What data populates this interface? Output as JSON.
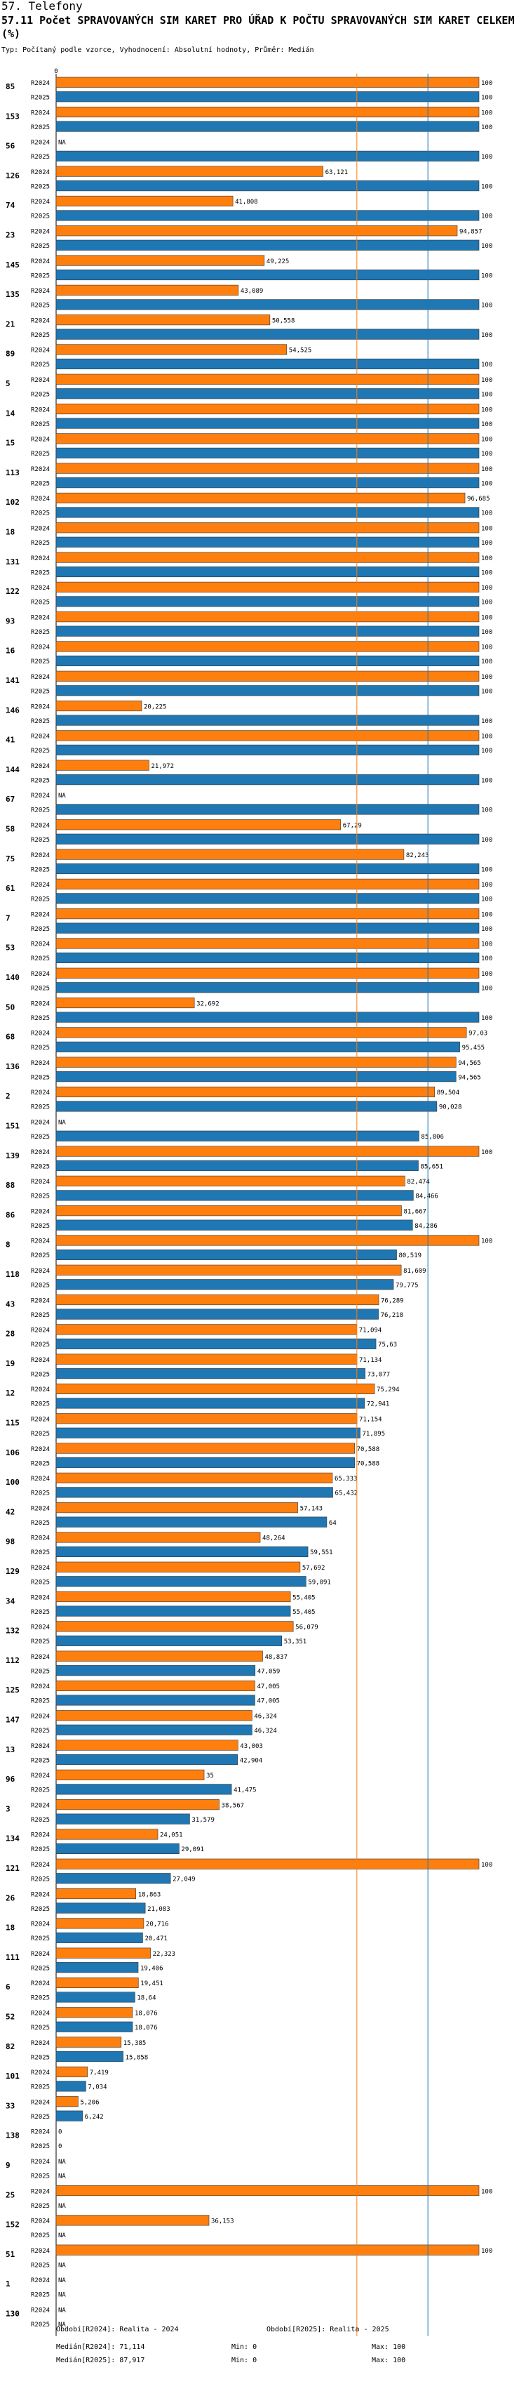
{
  "header": {
    "section": "57. Telefony",
    "title": "57.11 Počet SPRAVOVANÝCH SIM KARET PRO ÚŘAD K POČTU SPRAVOVANÝCH SIM KARET CELKEM (%)",
    "subtitle": "Typ: Počítaný podle vzorce, Vyhodnocení: Absolutní hodnoty, Průměr: Medián"
  },
  "legend": {
    "period_2024": "Období[R2024]: Realita - 2024",
    "period_2025": "Období[R2025]: Realita - 2025",
    "median_2024": "Medián[R2024]: 71,114",
    "median_2025": "Medián[R2025]: 87,917",
    "min_2024": "Min: 0",
    "min_2025": "Min: 0",
    "max_2024": "Max: 100",
    "max_2025": "Max: 100"
  },
  "colors": {
    "r2024": "#ff7f0e",
    "r2025": "#1f77b4",
    "median2024": "#ff7f0e",
    "median2025": "#1f77b4"
  },
  "chart_data": {
    "type": "bar",
    "orientation": "horizontal",
    "x_axis_zero_label": "0",
    "xlim": [
      0,
      100
    ],
    "median_lines": {
      "R2024": 71.114,
      "R2025": 87.917
    },
    "series_names": [
      "R2024",
      "R2025"
    ],
    "rows": [
      {
        "id": "85",
        "R2024": {
          "v": 100,
          "l": "100"
        },
        "R2025": {
          "v": 100,
          "l": "100"
        }
      },
      {
        "id": "153",
        "R2024": {
          "v": 100,
          "l": "100"
        },
        "R2025": {
          "v": 100,
          "l": "100"
        }
      },
      {
        "id": "56",
        "R2024": {
          "v": null,
          "l": "NA"
        },
        "R2025": {
          "v": 100,
          "l": "100"
        }
      },
      {
        "id": "126",
        "R2024": {
          "v": 63.121,
          "l": "63,121"
        },
        "R2025": {
          "v": 100,
          "l": "100"
        }
      },
      {
        "id": "74",
        "R2024": {
          "v": 41.808,
          "l": "41,808"
        },
        "R2025": {
          "v": 100,
          "l": "100"
        }
      },
      {
        "id": "23",
        "R2024": {
          "v": 94.857,
          "l": "94,857"
        },
        "R2025": {
          "v": 100,
          "l": "100"
        }
      },
      {
        "id": "145",
        "R2024": {
          "v": 49.225,
          "l": "49,225"
        },
        "R2025": {
          "v": 100,
          "l": "100"
        }
      },
      {
        "id": "135",
        "R2024": {
          "v": 43.089,
          "l": "43,089"
        },
        "R2025": {
          "v": 100,
          "l": "100"
        }
      },
      {
        "id": "21",
        "R2024": {
          "v": 50.558,
          "l": "50,558"
        },
        "R2025": {
          "v": 100,
          "l": "100"
        }
      },
      {
        "id": "89",
        "R2024": {
          "v": 54.525,
          "l": "54,525"
        },
        "R2025": {
          "v": 100,
          "l": "100"
        }
      },
      {
        "id": "5",
        "R2024": {
          "v": 100,
          "l": "100"
        },
        "R2025": {
          "v": 100,
          "l": "100"
        }
      },
      {
        "id": "14",
        "R2024": {
          "v": 100,
          "l": "100"
        },
        "R2025": {
          "v": 100,
          "l": "100"
        }
      },
      {
        "id": "15",
        "R2024": {
          "v": 100,
          "l": "100"
        },
        "R2025": {
          "v": 100,
          "l": "100"
        }
      },
      {
        "id": "113",
        "R2024": {
          "v": 100,
          "l": "100"
        },
        "R2025": {
          "v": 100,
          "l": "100"
        }
      },
      {
        "id": "102",
        "R2024": {
          "v": 96.685,
          "l": "96,685"
        },
        "R2025": {
          "v": 100,
          "l": "100"
        }
      },
      {
        "id": "18",
        "R2024": {
          "v": 100,
          "l": "100"
        },
        "R2025": {
          "v": 100,
          "l": "100"
        }
      },
      {
        "id": "131",
        "R2024": {
          "v": 100,
          "l": "100"
        },
        "R2025": {
          "v": 100,
          "l": "100"
        }
      },
      {
        "id": "122",
        "R2024": {
          "v": 100,
          "l": "100"
        },
        "R2025": {
          "v": 100,
          "l": "100"
        }
      },
      {
        "id": "93",
        "R2024": {
          "v": 100,
          "l": "100"
        },
        "R2025": {
          "v": 100,
          "l": "100"
        }
      },
      {
        "id": "16",
        "R2024": {
          "v": 100,
          "l": "100"
        },
        "R2025": {
          "v": 100,
          "l": "100"
        }
      },
      {
        "id": "141",
        "R2024": {
          "v": 100,
          "l": "100"
        },
        "R2025": {
          "v": 100,
          "l": "100"
        }
      },
      {
        "id": "146",
        "R2024": {
          "v": 20.225,
          "l": "20,225"
        },
        "R2025": {
          "v": 100,
          "l": "100"
        }
      },
      {
        "id": "41",
        "R2024": {
          "v": 100,
          "l": "100"
        },
        "R2025": {
          "v": 100,
          "l": "100"
        }
      },
      {
        "id": "144",
        "R2024": {
          "v": 21.972,
          "l": "21,972"
        },
        "R2025": {
          "v": 100,
          "l": "100"
        }
      },
      {
        "id": "67",
        "R2024": {
          "v": null,
          "l": "NA"
        },
        "R2025": {
          "v": 100,
          "l": "100"
        }
      },
      {
        "id": "58",
        "R2024": {
          "v": 67.29,
          "l": "67,29"
        },
        "R2025": {
          "v": 100,
          "l": "100"
        }
      },
      {
        "id": "75",
        "R2024": {
          "v": 82.243,
          "l": "82,243"
        },
        "R2025": {
          "v": 100,
          "l": "100"
        }
      },
      {
        "id": "61",
        "R2024": {
          "v": 100,
          "l": "100"
        },
        "R2025": {
          "v": 100,
          "l": "100"
        }
      },
      {
        "id": "7",
        "R2024": {
          "v": 100,
          "l": "100"
        },
        "R2025": {
          "v": 100,
          "l": "100"
        }
      },
      {
        "id": "53",
        "R2024": {
          "v": 100,
          "l": "100"
        },
        "R2025": {
          "v": 100,
          "l": "100"
        }
      },
      {
        "id": "140",
        "R2024": {
          "v": 100,
          "l": "100"
        },
        "R2025": {
          "v": 100,
          "l": "100"
        }
      },
      {
        "id": "50",
        "R2024": {
          "v": 32.692,
          "l": "32,692"
        },
        "R2025": {
          "v": 100,
          "l": "100"
        }
      },
      {
        "id": "68",
        "R2024": {
          "v": 97.03,
          "l": "97,03"
        },
        "R2025": {
          "v": 95.455,
          "l": "95,455"
        }
      },
      {
        "id": "136",
        "R2024": {
          "v": 94.565,
          "l": "94,565"
        },
        "R2025": {
          "v": 94.565,
          "l": "94,565"
        }
      },
      {
        "id": "2",
        "R2024": {
          "v": 89.504,
          "l": "89,504"
        },
        "R2025": {
          "v": 90.028,
          "l": "90,028"
        }
      },
      {
        "id": "151",
        "R2024": {
          "v": null,
          "l": "NA"
        },
        "R2025": {
          "v": 85.806,
          "l": "85,806"
        }
      },
      {
        "id": "139",
        "R2024": {
          "v": 100,
          "l": "100"
        },
        "R2025": {
          "v": 85.651,
          "l": "85,651"
        }
      },
      {
        "id": "88",
        "R2024": {
          "v": 82.474,
          "l": "82,474"
        },
        "R2025": {
          "v": 84.466,
          "l": "84,466"
        }
      },
      {
        "id": "86",
        "R2024": {
          "v": 81.667,
          "l": "81,667"
        },
        "R2025": {
          "v": 84.286,
          "l": "84,286"
        }
      },
      {
        "id": "8",
        "R2024": {
          "v": 100,
          "l": "100"
        },
        "R2025": {
          "v": 80.519,
          "l": "80,519"
        }
      },
      {
        "id": "118",
        "R2024": {
          "v": 81.609,
          "l": "81,609"
        },
        "R2025": {
          "v": 79.775,
          "l": "79,775"
        }
      },
      {
        "id": "43",
        "R2024": {
          "v": 76.289,
          "l": "76,289"
        },
        "R2025": {
          "v": 76.218,
          "l": "76,218"
        }
      },
      {
        "id": "28",
        "R2024": {
          "v": 71.094,
          "l": "71,094"
        },
        "R2025": {
          "v": 75.63,
          "l": "75,63"
        }
      },
      {
        "id": "19",
        "R2024": {
          "v": 71.134,
          "l": "71,134"
        },
        "R2025": {
          "v": 73.077,
          "l": "73,077"
        }
      },
      {
        "id": "12",
        "R2024": {
          "v": 75.294,
          "l": "75,294"
        },
        "R2025": {
          "v": 72.941,
          "l": "72,941"
        }
      },
      {
        "id": "115",
        "R2024": {
          "v": 71.154,
          "l": "71,154"
        },
        "R2025": {
          "v": 71.895,
          "l": "71,895"
        }
      },
      {
        "id": "106",
        "R2024": {
          "v": 70.588,
          "l": "70,588"
        },
        "R2025": {
          "v": 70.588,
          "l": "70,588"
        }
      },
      {
        "id": "100",
        "R2024": {
          "v": 65.333,
          "l": "65,333"
        },
        "R2025": {
          "v": 65.432,
          "l": "65,432"
        }
      },
      {
        "id": "42",
        "R2024": {
          "v": 57.143,
          "l": "57,143"
        },
        "R2025": {
          "v": 64,
          "l": "64"
        }
      },
      {
        "id": "98",
        "R2024": {
          "v": 48.264,
          "l": "48,264"
        },
        "R2025": {
          "v": 59.551,
          "l": "59,551"
        }
      },
      {
        "id": "129",
        "R2024": {
          "v": 57.692,
          "l": "57,692"
        },
        "R2025": {
          "v": 59.091,
          "l": "59,091"
        }
      },
      {
        "id": "34",
        "R2024": {
          "v": 55.405,
          "l": "55,405"
        },
        "R2025": {
          "v": 55.405,
          "l": "55,405"
        }
      },
      {
        "id": "132",
        "R2024": {
          "v": 56.079,
          "l": "56,079"
        },
        "R2025": {
          "v": 53.351,
          "l": "53,351"
        }
      },
      {
        "id": "112",
        "R2024": {
          "v": 48.837,
          "l": "48,837"
        },
        "R2025": {
          "v": 47.059,
          "l": "47,059"
        }
      },
      {
        "id": "125",
        "R2024": {
          "v": 47.005,
          "l": "47,005"
        },
        "R2025": {
          "v": 47.005,
          "l": "47,005"
        }
      },
      {
        "id": "147",
        "R2024": {
          "v": 46.324,
          "l": "46,324"
        },
        "R2025": {
          "v": 46.324,
          "l": "46,324"
        }
      },
      {
        "id": "13",
        "R2024": {
          "v": 43.003,
          "l": "43,003"
        },
        "R2025": {
          "v": 42.904,
          "l": "42,904"
        }
      },
      {
        "id": "96",
        "R2024": {
          "v": 35,
          "l": "35"
        },
        "R2025": {
          "v": 41.475,
          "l": "41,475"
        }
      },
      {
        "id": "3",
        "R2024": {
          "v": 38.567,
          "l": "38,567"
        },
        "R2025": {
          "v": 31.579,
          "l": "31,579"
        }
      },
      {
        "id": "134",
        "R2024": {
          "v": 24.051,
          "l": "24,051"
        },
        "R2025": {
          "v": 29.091,
          "l": "29,091"
        }
      },
      {
        "id": "121",
        "R2024": {
          "v": 100,
          "l": "100"
        },
        "R2025": {
          "v": 27.049,
          "l": "27,049"
        }
      },
      {
        "id": "26",
        "R2024": {
          "v": 18.863,
          "l": "18,863"
        },
        "R2025": {
          "v": 21.083,
          "l": "21,083"
        }
      },
      {
        "id": "18",
        "R2024": {
          "v": 20.716,
          "l": "20,716"
        },
        "R2025": {
          "v": 20.471,
          "l": "20,471"
        }
      },
      {
        "id": "111",
        "R2024": {
          "v": 22.323,
          "l": "22,323"
        },
        "R2025": {
          "v": 19.406,
          "l": "19,406"
        }
      },
      {
        "id": "6",
        "R2024": {
          "v": 19.451,
          "l": "19,451"
        },
        "R2025": {
          "v": 18.64,
          "l": "18,64"
        }
      },
      {
        "id": "52",
        "R2024": {
          "v": 18.076,
          "l": "18,076"
        },
        "R2025": {
          "v": 18.076,
          "l": "18,076"
        }
      },
      {
        "id": "82",
        "R2024": {
          "v": 15.385,
          "l": "15,385"
        },
        "R2025": {
          "v": 15.858,
          "l": "15,858"
        }
      },
      {
        "id": "101",
        "R2024": {
          "v": 7.419,
          "l": "7,419"
        },
        "R2025": {
          "v": 7.034,
          "l": "7,034"
        }
      },
      {
        "id": "33",
        "R2024": {
          "v": 5.206,
          "l": "5,206"
        },
        "R2025": {
          "v": 6.242,
          "l": "6,242"
        }
      },
      {
        "id": "138",
        "R2024": {
          "v": 0,
          "l": "0"
        },
        "R2025": {
          "v": 0,
          "l": "0"
        }
      },
      {
        "id": "9",
        "R2024": {
          "v": null,
          "l": "NA"
        },
        "R2025": {
          "v": null,
          "l": "NA"
        }
      },
      {
        "id": "25",
        "R2024": {
          "v": 100,
          "l": "100"
        },
        "R2025": {
          "v": null,
          "l": "NA"
        }
      },
      {
        "id": "152",
        "R2024": {
          "v": 36.153,
          "l": "36,153"
        },
        "R2025": {
          "v": null,
          "l": "NA"
        }
      },
      {
        "id": "51",
        "R2024": {
          "v": 100,
          "l": "100"
        },
        "R2025": {
          "v": null,
          "l": "NA"
        }
      },
      {
        "id": "1",
        "R2024": {
          "v": null,
          "l": "NA"
        },
        "R2025": {
          "v": null,
          "l": "NA"
        }
      },
      {
        "id": "130",
        "R2024": {
          "v": null,
          "l": "NA"
        },
        "R2025": {
          "v": null,
          "l": "NA"
        }
      }
    ]
  }
}
